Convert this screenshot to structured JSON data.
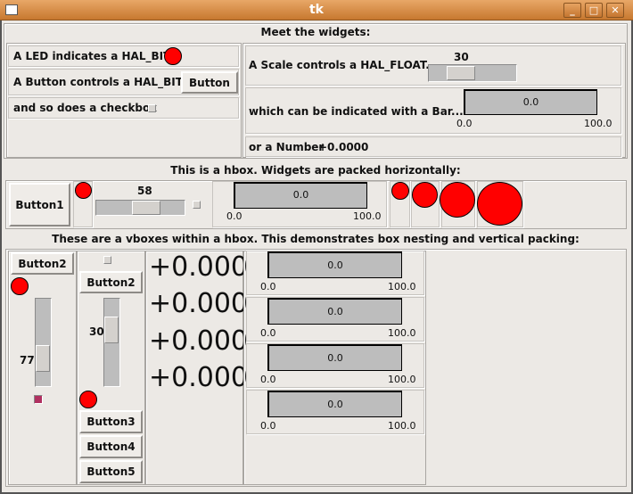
{
  "window": {
    "title": "tk",
    "minimize": "_",
    "maximize": "□",
    "close": "✕"
  },
  "section1": {
    "heading": "Meet the widgets:",
    "led_label": "A LED indicates a HAL_BIT:",
    "button_label": "A Button controls a HAL_BIT...",
    "button": "Button",
    "checkbox_label": "and so does a checkbox",
    "scale_label": "A Scale controls a HAL_FLOAT...",
    "scale_value": "30",
    "bar_label": "which can be indicated with a Bar...",
    "bar_value": "0.0",
    "bar_min": "0.0",
    "bar_max": "100.0",
    "number_label": "or a Number",
    "number_value": "+0.0000"
  },
  "section2": {
    "heading": "This is a hbox. Widgets are packed horizontally:",
    "button": "Button1",
    "scale_value": "58",
    "bar_value": "0.0",
    "bar_min": "0.0",
    "bar_max": "100.0"
  },
  "section3": {
    "heading": "These are a vboxes within a hbox. This demonstrates box nesting and vertical packing:",
    "col1": {
      "button": "Button2",
      "scale_value": "77",
      "checkbox_checked": true
    },
    "col2": {
      "button": "Button2",
      "scale_value": "30",
      "buttons": [
        "Button3",
        "Button4",
        "Button5"
      ]
    },
    "numbers": [
      "+0.000",
      "+0.000",
      "+0.000",
      "+0.000"
    ],
    "bars": [
      {
        "value": "0.0",
        "min": "0.0",
        "max": "100.0"
      },
      {
        "value": "0.0",
        "min": "0.0",
        "max": "100.0"
      },
      {
        "value": "0.0",
        "min": "0.0",
        "max": "100.0"
      },
      {
        "value": "0.0",
        "min": "0.0",
        "max": "100.0"
      }
    ]
  },
  "colors": {
    "led_on": "#ff0000",
    "titlebar": "#d08a45",
    "checkbox_checked": "#b03060"
  }
}
